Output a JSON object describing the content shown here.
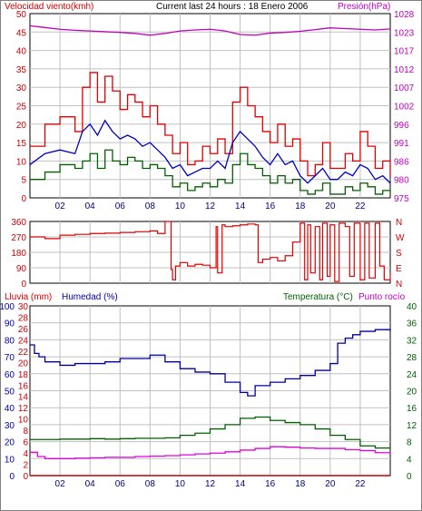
{
  "colors": {
    "wind_gust": "#e00000",
    "wind_avg": "#0000c0",
    "wind_dir": "#e00000",
    "pressure": "#c000c0",
    "humidity": "#0000a0",
    "temperature": "#006000",
    "dewpoint": "#e000e0",
    "rain": "#c00000",
    "grid": "#c0c0c0",
    "red_text": "#d00000",
    "magenta_text": "#c000c0",
    "blue_text": "#0000a0",
    "green_text": "#006000"
  },
  "header": {
    "left": "Velocidad viento(kmh)",
    "center": "Current last 24 hours : 18 Enero 2006",
    "right": "Presión(hPa)"
  },
  "x_ticks": [
    "02",
    "04",
    "06",
    "08",
    "10",
    "12",
    "14",
    "16",
    "18",
    "20",
    "22"
  ],
  "chart_data": [
    {
      "type": "line",
      "title": "Current last 24 hours : 18 Enero 2006",
      "xlim": [
        0,
        24
      ],
      "ylim_left": [
        0,
        50
      ],
      "ylim_right": [
        975,
        1028
      ],
      "left_axis_label": "Velocidad viento(kmh)",
      "right_axis_label": "Presión(hPa)",
      "left_ticks": [
        "0",
        "5",
        "10",
        "15",
        "20",
        "25",
        "30",
        "35",
        "40",
        "45",
        "50"
      ],
      "right_ticks": [
        "975",
        "980",
        "986",
        "991",
        "996",
        "1002",
        "1007",
        "1012",
        "1017",
        "1023",
        "1028"
      ],
      "series": [
        {
          "key": "gust",
          "axis": "left",
          "x": [
            0,
            1,
            2,
            3,
            3.5,
            4,
            4.5,
            5,
            5.5,
            6,
            6.5,
            7,
            7.5,
            8,
            8.5,
            9,
            9.5,
            10,
            10.5,
            11,
            11.5,
            12,
            12.5,
            13,
            13.5,
            14,
            14.5,
            15,
            15.5,
            16,
            16.5,
            17,
            17.5,
            18,
            18.5,
            19,
            19.5,
            20,
            20.5,
            21,
            21.5,
            22,
            22.5,
            23,
            23.5,
            24
          ],
          "y": [
            14,
            20,
            22,
            18,
            30,
            34,
            26,
            33,
            29,
            24,
            28,
            26,
            22,
            25,
            20,
            17,
            12,
            15,
            9,
            10,
            14,
            12,
            16,
            12,
            26,
            30,
            25,
            22,
            18,
            15,
            20,
            14,
            16,
            10,
            6,
            9,
            15,
            8,
            8,
            12,
            10,
            18,
            14,
            8,
            10,
            6
          ]
        },
        {
          "key": "avg",
          "axis": "left",
          "x": [
            0,
            1,
            2,
            3,
            3.5,
            4,
            4.5,
            5,
            5.5,
            6,
            6.5,
            7,
            7.5,
            8,
            8.5,
            9,
            9.5,
            10,
            10.5,
            11,
            11.5,
            12,
            12.5,
            13,
            13.5,
            14,
            14.5,
            15,
            15.5,
            16,
            16.5,
            17,
            17.5,
            18,
            18.5,
            19,
            19.5,
            20,
            20.5,
            21,
            21.5,
            22,
            22.5,
            23,
            23.5,
            24
          ],
          "y": [
            9,
            12,
            13,
            12,
            18,
            20,
            17,
            21,
            18,
            16,
            17,
            16,
            14,
            15,
            13,
            11,
            8,
            9,
            6,
            7,
            8,
            8,
            10,
            8,
            15,
            18,
            16,
            14,
            11,
            9,
            12,
            9,
            10,
            6,
            4,
            6,
            8,
            5,
            5,
            7,
            6,
            9,
            8,
            5,
            6,
            4
          ]
        },
        {
          "key": "low",
          "axis": "left",
          "x": [
            0,
            1,
            2,
            3,
            3.5,
            4,
            4.5,
            5,
            5.5,
            6,
            6.5,
            7,
            7.5,
            8,
            8.5,
            9,
            9.5,
            10,
            10.5,
            11,
            11.5,
            12,
            12.5,
            13,
            13.5,
            14,
            14.5,
            15,
            15.5,
            16,
            16.5,
            17,
            17.5,
            18,
            18.5,
            19,
            19.5,
            20,
            20.5,
            21,
            21.5,
            22,
            22.5,
            23,
            23.5,
            24
          ],
          "y": [
            5,
            7,
            9,
            8,
            10,
            12,
            8,
            13,
            10,
            9,
            11,
            10,
            8,
            9,
            8,
            6,
            3,
            4,
            2,
            3,
            4,
            3,
            5,
            4,
            9,
            12,
            9,
            8,
            6,
            4,
            6,
            4,
            5,
            2,
            1,
            2,
            4,
            1,
            1,
            3,
            2,
            4,
            3,
            1,
            2,
            1
          ]
        },
        {
          "key": "pressure",
          "axis": "right",
          "x": [
            0,
            1,
            2,
            3,
            4,
            5,
            6,
            7,
            8,
            9,
            10,
            11,
            12,
            13,
            14,
            15,
            16,
            17,
            18,
            19,
            20,
            21,
            22,
            23,
            24
          ],
          "y": [
            1024.5,
            1024,
            1023.5,
            1023.2,
            1023,
            1022.8,
            1022.6,
            1022.3,
            1021.8,
            1022.3,
            1023,
            1023.3,
            1023.5,
            1023,
            1022,
            1021.8,
            1022.4,
            1022.6,
            1022.9,
            1023.4,
            1023.9,
            1023.7,
            1023.5,
            1023.3,
            1023.6
          ]
        }
      ]
    },
    {
      "type": "line",
      "ylim_left": [
        0,
        360
      ],
      "left_ticks": [
        "0",
        "90",
        "180",
        "270",
        "360"
      ],
      "right_ticks": [
        "N",
        "E",
        "S",
        "W",
        "N"
      ],
      "series": [
        {
          "key": "direction",
          "axis": "left",
          "x": [
            0,
            1,
            2,
            3,
            4,
            5,
            6,
            7,
            8,
            8.5,
            9,
            9.4,
            9.5,
            9.7,
            10,
            10.5,
            11,
            11.5,
            12,
            12.4,
            12.5,
            12.8,
            13,
            13.5,
            14,
            14.5,
            15,
            15.2,
            15.5,
            16,
            16.5,
            17,
            17.5,
            18,
            18.3,
            18.5,
            18.7,
            19,
            19.3,
            19.5,
            19.8,
            20,
            20.3,
            20.6,
            21,
            21.3,
            21.6,
            22,
            22.3,
            22.6,
            23,
            23.3,
            23.6,
            24
          ],
          "y": [
            270,
            260,
            280,
            285,
            290,
            292,
            296,
            300,
            305,
            290,
            360,
            80,
            20,
            100,
            120,
            100,
            110,
            105,
            90,
            330,
            60,
            340,
            330,
            335,
            340,
            345,
            340,
            120,
            140,
            150,
            130,
            160,
            240,
            350,
            20,
            340,
            60,
            330,
            20,
            350,
            40,
            340,
            10,
            350,
            330,
            40,
            350,
            20,
            350,
            30,
            350,
            100,
            20,
            60
          ]
        }
      ]
    },
    {
      "type": "line",
      "ylim_left": [
        0,
        100
      ],
      "ylim_right": [
        0,
        40
      ],
      "left_axis_label": "Lluvia (mm)",
      "left_axis_label_2": "Humedad (%)",
      "right_axis_label": "Temperatura (°C)",
      "right_axis_label_2": "Punto rocío",
      "left_ticks": [
        "0",
        "10",
        "20",
        "30",
        "40",
        "50",
        "60",
        "70",
        "80",
        "90",
        "100"
      ],
      "rain_ticks": [
        "0",
        "2",
        "4",
        "6",
        "8",
        "10",
        "12",
        "14",
        "16",
        "18",
        "20",
        "22",
        "24",
        "26",
        "28",
        "30"
      ],
      "right_ticks": [
        "0",
        "4",
        "8",
        "12",
        "16",
        "20",
        "24",
        "28",
        "32",
        "36",
        "40"
      ],
      "series": [
        {
          "key": "humidity",
          "axis": "left",
          "x": [
            0,
            0.3,
            0.6,
            1,
            2,
            3,
            4,
            5,
            6,
            7,
            8,
            9,
            10,
            11,
            12,
            13,
            14,
            14.5,
            15,
            16,
            17,
            18,
            19,
            20,
            20.5,
            21,
            21.5,
            22,
            23,
            24
          ],
          "y": [
            77,
            72,
            70,
            67,
            65,
            66,
            66,
            67,
            69,
            69,
            71,
            67,
            63,
            61,
            60,
            55,
            49,
            47,
            53,
            55,
            57,
            59,
            62,
            66,
            78,
            81,
            83,
            85,
            86,
            85
          ]
        },
        {
          "key": "temperature",
          "axis": "right",
          "x": [
            0,
            1,
            2,
            3,
            4,
            5,
            6,
            7,
            8,
            9,
            10,
            11,
            12,
            13,
            14,
            15,
            16,
            17,
            18,
            19,
            20,
            21,
            22,
            23,
            24
          ],
          "y": [
            8.5,
            8.5,
            8.6,
            8.6,
            8.7,
            8.6,
            8.7,
            8.8,
            8.8,
            8.9,
            9.5,
            10,
            11,
            12,
            13.5,
            13.8,
            13,
            12.5,
            12,
            11,
            9.5,
            8.5,
            7,
            6.5,
            6.8
          ]
        },
        {
          "key": "dewpoint",
          "axis": "right",
          "x": [
            0,
            0.5,
            1,
            2,
            3,
            4,
            5,
            6,
            7,
            8,
            9,
            10,
            11,
            12,
            13,
            14,
            15,
            16,
            17,
            18,
            19,
            20,
            21,
            22,
            23,
            24
          ],
          "y": [
            5.5,
            4.5,
            4,
            4,
            4.1,
            4.2,
            4.3,
            4.3,
            4.5,
            4.6,
            4.7,
            4.9,
            5.1,
            5.3,
            5.6,
            6,
            6.4,
            6.8,
            6.7,
            6.5,
            6.4,
            6.4,
            6.1,
            5.9,
            5.4,
            5.6
          ]
        },
        {
          "key": "rain",
          "axis": "left",
          "x": [
            0,
            24
          ],
          "y": [
            0,
            0
          ]
        }
      ]
    }
  ]
}
